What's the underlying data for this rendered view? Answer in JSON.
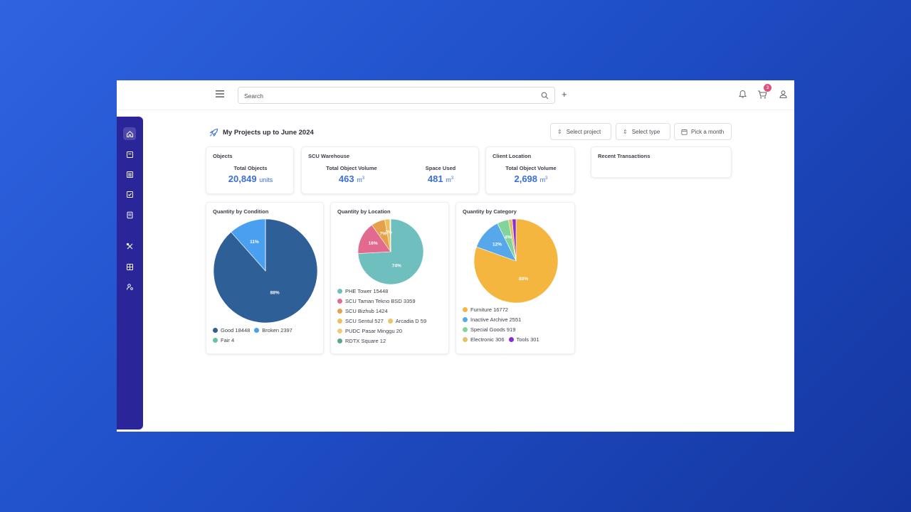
{
  "header": {
    "search_placeholder": "Search",
    "plus_label": "+",
    "cart_badge": "3"
  },
  "page": {
    "title": "My Projects up to June 2024",
    "filters": [
      "Select project",
      "Select type",
      "Pick a month"
    ]
  },
  "objects_card": {
    "title": "Objects",
    "label": "Total Objects",
    "value": "20,849",
    "unit": "units"
  },
  "warehouse_card": {
    "title": "SCU Warehouse",
    "volume_label": "Total Object Volume",
    "volume_value": "463",
    "space_label": "Space Used",
    "space_value": "481",
    "unit": "m",
    "unit_sup": "3"
  },
  "client_card": {
    "title": "Client Location",
    "volume_label": "Total Object Volume",
    "volume_value": "2,698",
    "unit": "m",
    "unit_sup": "3"
  },
  "transactions_card": {
    "title": "Recent Transactions"
  },
  "chart_data": [
    {
      "type": "pie",
      "title": "Quantity by Condition",
      "slices": [
        {
          "name": "Good",
          "value": 18448,
          "color": "#2f5f97",
          "label": "88%"
        },
        {
          "name": "Broken",
          "value": 2397,
          "color": "#4aa0f0",
          "label": "11%"
        },
        {
          "name": "Fair",
          "value": 4,
          "color": "#66c2a5",
          "label": ""
        }
      ],
      "legend": [
        "Good 18448",
        "Broken 2397",
        "Fair 4"
      ]
    },
    {
      "type": "pie",
      "title": "Quantity by Location",
      "slices": [
        {
          "name": "PHE Tower",
          "value": 15448,
          "color": "#6fbfbf",
          "label": "74%"
        },
        {
          "name": "SCU Taman Tekno BSD",
          "value": 3359,
          "color": "#e36a8f",
          "label": "16%"
        },
        {
          "name": "SCU Bizhub",
          "value": 1424,
          "color": "#e6a04b",
          "label": "7%"
        },
        {
          "name": "SCU Sentul",
          "value": 527,
          "color": "#eec05a",
          "label": "3%"
        },
        {
          "name": "Arcadia D",
          "value": 59,
          "color": "#e8c46a",
          "label": ""
        },
        {
          "name": "PUDC Pasar Minggu",
          "value": 20,
          "color": "#f0c878",
          "label": ""
        },
        {
          "name": "RDTX Square",
          "value": 12,
          "color": "#5aa88a",
          "label": ""
        }
      ],
      "legend": [
        "PHE Tower 15448",
        "SCU Taman Tekno BSD 3359",
        "SCU Bizhub 1424",
        "SCU Sentul 527",
        "Arcadia D 59",
        "PUDC Pasar Minggu 20",
        "RDTX Square 12"
      ]
    },
    {
      "type": "pie",
      "title": "Quantity by Category",
      "slices": [
        {
          "name": "Furniture",
          "value": 16772,
          "color": "#f4b63f",
          "label": "80%"
        },
        {
          "name": "Inactive Archive",
          "value": 2551,
          "color": "#57a8ea",
          "label": "12%"
        },
        {
          "name": "Special Goods",
          "value": 919,
          "color": "#82d49a",
          "label": "4%"
        },
        {
          "name": "Electronic",
          "value": 306,
          "color": "#e3c06a",
          "label": ""
        },
        {
          "name": "Tools",
          "value": 301,
          "color": "#8a2bd6",
          "label": ""
        }
      ],
      "legend": [
        "Furniture 16772",
        "Inactive Archive 2551",
        "Special Goods 919",
        "Electronic 306",
        "Tools 301"
      ]
    }
  ]
}
